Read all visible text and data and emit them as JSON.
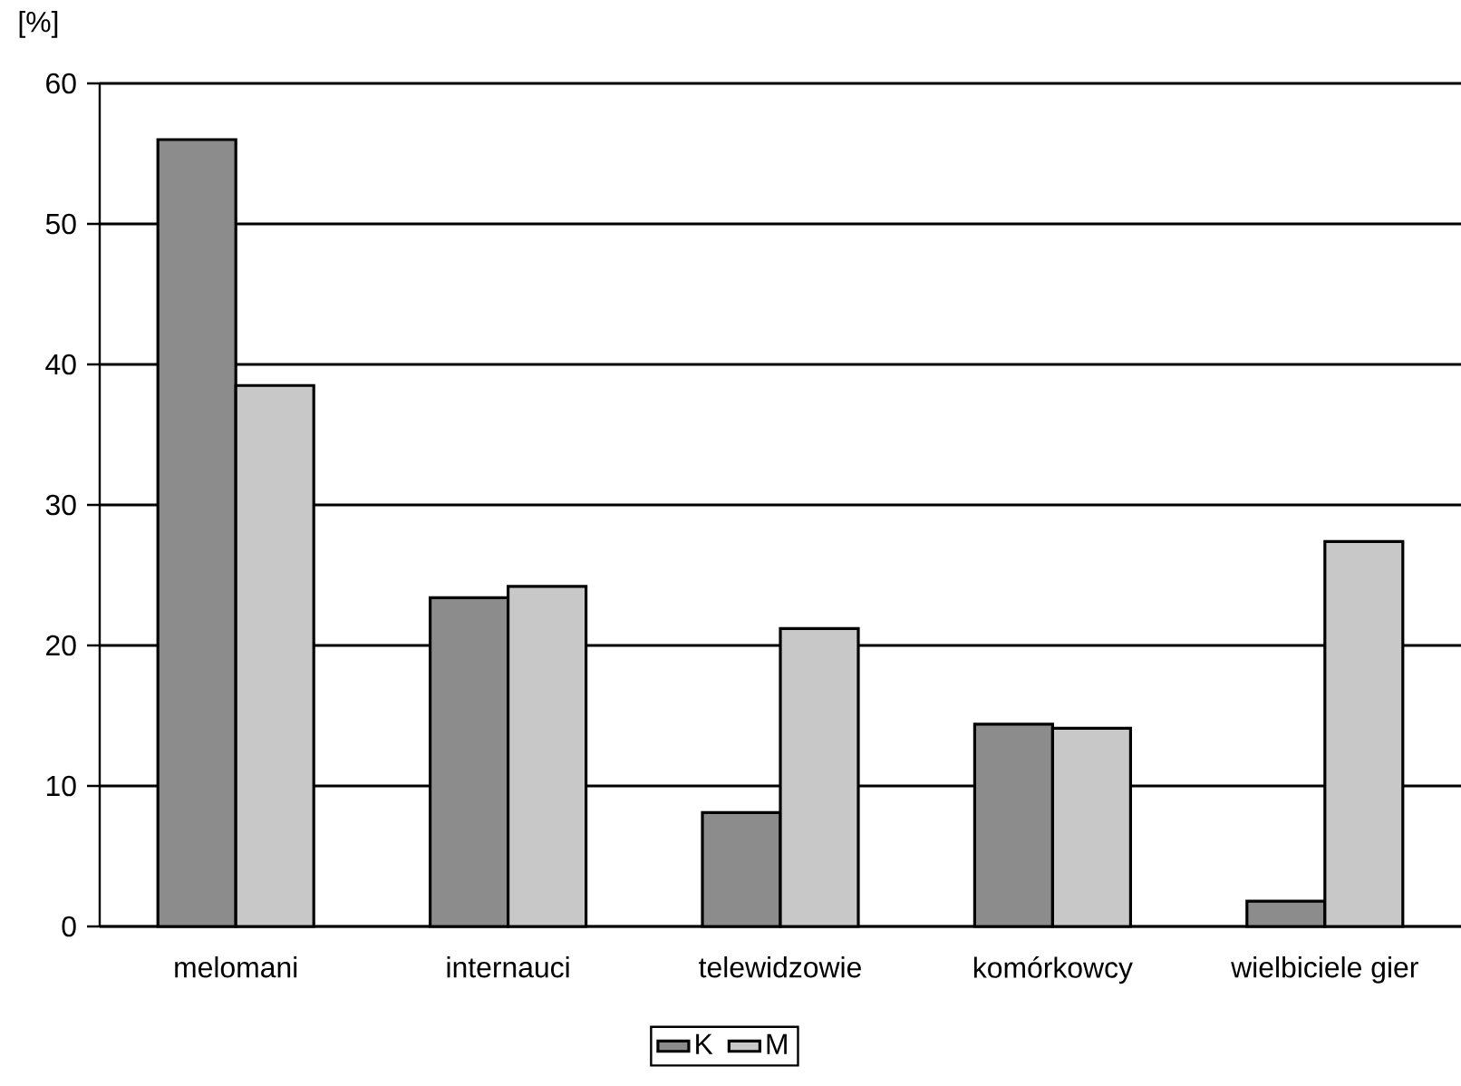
{
  "chart_data": {
    "type": "bar",
    "ylabel": "[%]",
    "categories": [
      "melomani",
      "internauci",
      "telewidzowie",
      "komórkowcy",
      "wielbiciele gier"
    ],
    "series": [
      {
        "name": "K",
        "color": "#8c8c8c",
        "values": [
          56,
          23.4,
          8.1,
          14.4,
          1.8
        ]
      },
      {
        "name": "M",
        "color": "#c8c8c8",
        "values": [
          38.5,
          24.2,
          21.2,
          14.1,
          27.4
        ]
      }
    ],
    "ylim": [
      0,
      60
    ],
    "yticks": [
      0,
      10,
      20,
      30,
      40,
      50,
      60
    ],
    "grid": "y",
    "legend": "bottom"
  }
}
